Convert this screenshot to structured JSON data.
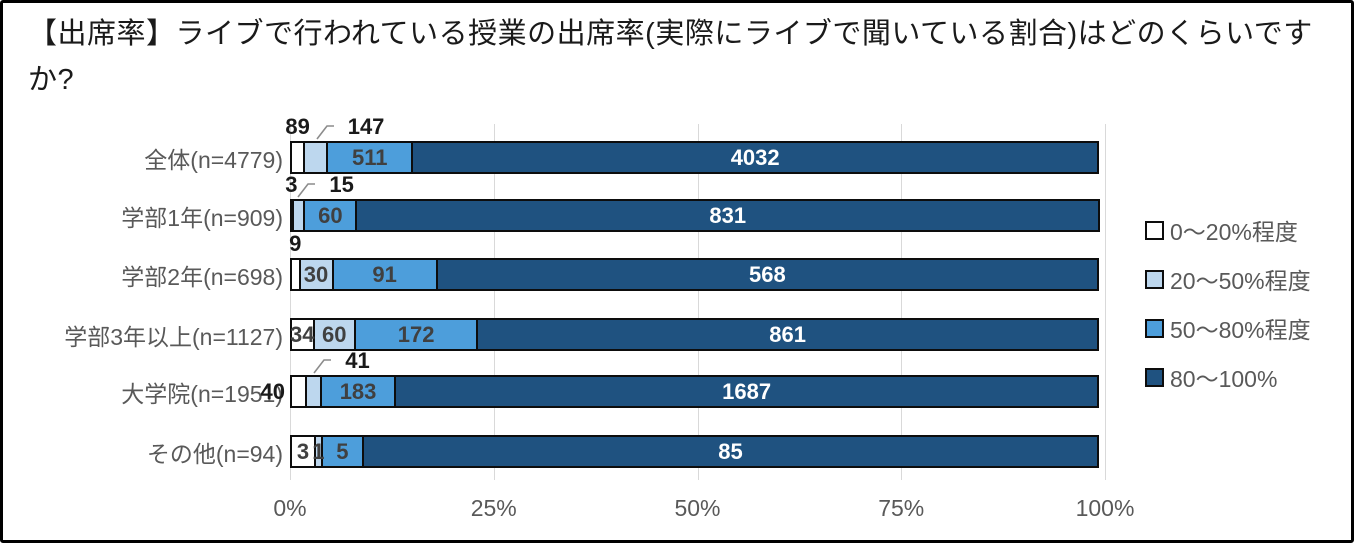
{
  "title": "【出席率】ライブで行われている授業の出席率(実際にライブで聞いている割合)はどのくらいですか?",
  "chart_data": {
    "type": "bar",
    "subtype": "horizontal-stacked-100pct",
    "categories": [
      "全体(n=4779)",
      "学部1年(n=909)",
      "学部2年(n=698)",
      "学部3年以上(n=1127)",
      "大学院(n=1951)",
      "その他(n=94)"
    ],
    "totals": [
      4779,
      909,
      698,
      1127,
      1951,
      94
    ],
    "series": [
      {
        "name": "0〜20%程度",
        "color": "#ffffff",
        "values": [
          89,
          3,
          9,
          34,
          40,
          3
        ]
      },
      {
        "name": "20〜50%程度",
        "color": "#bdd7ee",
        "values": [
          147,
          15,
          30,
          60,
          41,
          1
        ]
      },
      {
        "name": "50〜80%程度",
        "color": "#4d9edb",
        "values": [
          511,
          60,
          91,
          172,
          183,
          5
        ]
      },
      {
        "name": "80〜100%",
        "color": "#1f5280",
        "values": [
          4032,
          831,
          568,
          861,
          1687,
          85
        ]
      }
    ],
    "value_label_positions": [
      [
        "above",
        "callout",
        "inside",
        "inside"
      ],
      [
        "above",
        "callout",
        "inside",
        "inside"
      ],
      [
        "above",
        "inside",
        "inside",
        "inside"
      ],
      [
        "inside",
        "inside",
        "inside",
        "inside"
      ],
      [
        "left",
        "callout",
        "inside",
        "inside"
      ],
      [
        "inside",
        "inside",
        "inside",
        "inside"
      ]
    ],
    "x_tick_labels": [
      "0%",
      "25%",
      "50%",
      "75%",
      "100%"
    ],
    "x_tick_values": [
      0,
      25,
      50,
      75,
      100
    ],
    "xlim": [
      0,
      100
    ],
    "grid": true,
    "legend_position": "right"
  },
  "style": {
    "background": "#ffffff",
    "frame_border_color": "#000000",
    "title_color": "#1a1a1a",
    "grid_color": "#d9d9d9",
    "bar_border_color": "#0d0d0d",
    "inside_label_color_light": "#404040",
    "inside_label_color_dark": "#ffffff",
    "outside_label_color": "#1a1a1a",
    "category_label_color": "#595959",
    "axis_label_color": "#595959",
    "legend_label_color": "#595959",
    "callout_line_color": "#8c8c8c"
  }
}
